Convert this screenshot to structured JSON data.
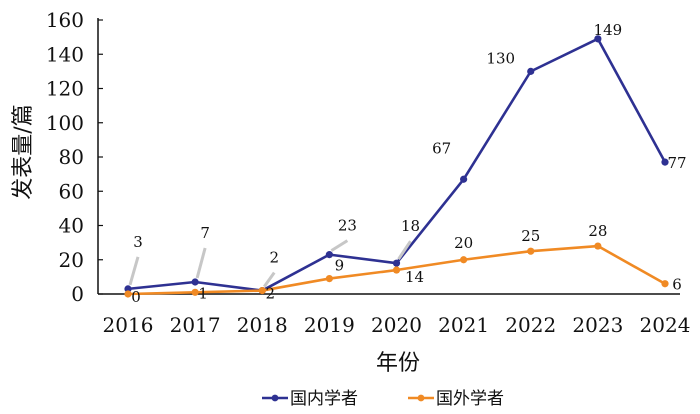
{
  "chart_data": {
    "type": "line",
    "categories": [
      "2016",
      "2017",
      "2018",
      "2019",
      "2020",
      "2021",
      "2022",
      "2023",
      "2024"
    ],
    "series": [
      {
        "name": "国内学者",
        "color": "#2e3192",
        "values": [
          3,
          7,
          2,
          23,
          18,
          67,
          130,
          149,
          77
        ]
      },
      {
        "name": "国外学者",
        "color": "#f08a24",
        "values": [
          0,
          1,
          2,
          9,
          14,
          20,
          25,
          28,
          6
        ]
      }
    ],
    "xlabel": "年份",
    "ylabel": "发表量/篇",
    "ylim": [
      0,
      160
    ],
    "yticks": [
      0,
      20,
      40,
      60,
      80,
      100,
      120,
      140,
      160
    ],
    "grid": false,
    "legend_position": "bottom-center"
  }
}
